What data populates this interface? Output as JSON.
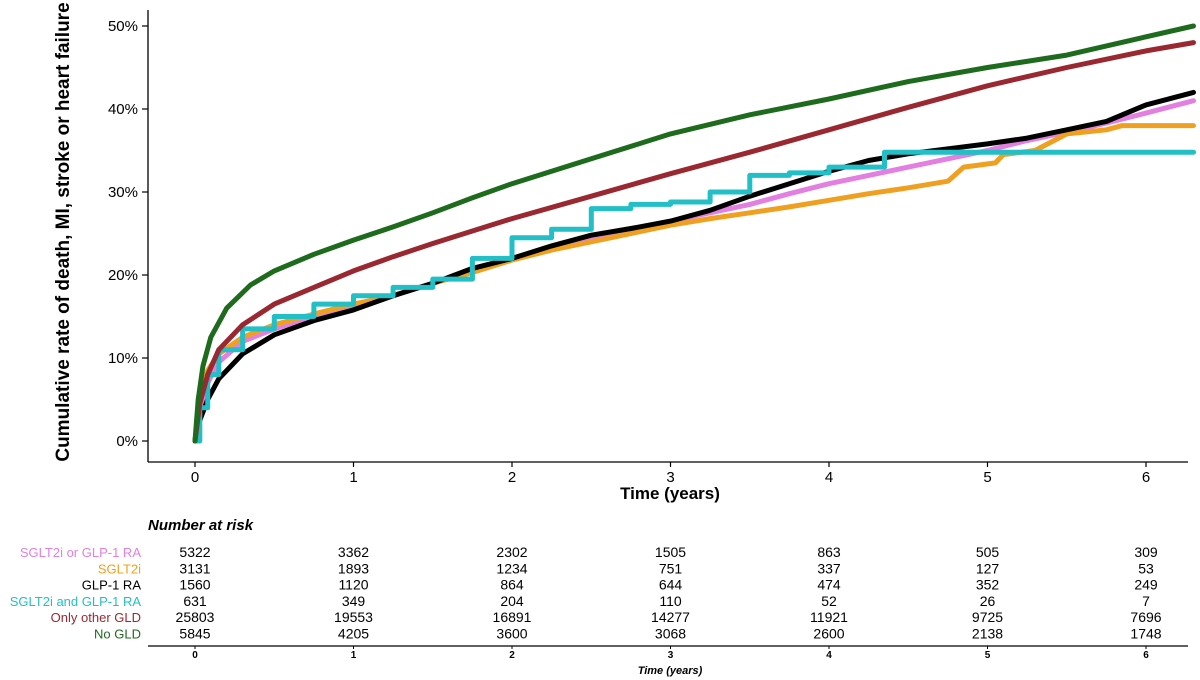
{
  "chart_data": {
    "type": "line",
    "subtype": "step-cumulative-incidence",
    "ylabel": "Cumulative rate of death, MI, stroke or heart failure",
    "xlabel": "Time (years)",
    "xlim": [
      0,
      6.3
    ],
    "ylim": [
      0,
      52
    ],
    "yticks": [
      0,
      10,
      20,
      30,
      40,
      50
    ],
    "ytick_labels": [
      "0%",
      "10%",
      "20%",
      "30%",
      "40%",
      "50%"
    ],
    "xticks": [
      0,
      1,
      2,
      3,
      4,
      5,
      6
    ],
    "xtick_labels": [
      "0",
      "1",
      "2",
      "3",
      "4",
      "5",
      "6"
    ],
    "grid": false,
    "legend": "none (labels in risk table)",
    "series": [
      {
        "name": "SGLT2i or GLP-1 RA",
        "color": "#e27fe0",
        "step": false,
        "points": [
          [
            0,
            0
          ],
          [
            0.03,
            3.5
          ],
          [
            0.08,
            7
          ],
          [
            0.15,
            9.5
          ],
          [
            0.3,
            12
          ],
          [
            0.5,
            13.5
          ],
          [
            0.75,
            15
          ],
          [
            1,
            16
          ],
          [
            1.25,
            17.5
          ],
          [
            1.5,
            19
          ],
          [
            1.75,
            20.5
          ],
          [
            2,
            22
          ],
          [
            2.25,
            23.3
          ],
          [
            2.5,
            24.5
          ],
          [
            2.75,
            25.5
          ],
          [
            3,
            26.5
          ],
          [
            3.25,
            27.5
          ],
          [
            3.5,
            28.5
          ],
          [
            3.75,
            29.8
          ],
          [
            4,
            31
          ],
          [
            4.25,
            32
          ],
          [
            4.5,
            33
          ],
          [
            4.75,
            34
          ],
          [
            5,
            35
          ],
          [
            5.25,
            36.2
          ],
          [
            5.5,
            37.2
          ],
          [
            5.75,
            38.3
          ],
          [
            6,
            39.5
          ],
          [
            6.3,
            41
          ]
        ]
      },
      {
        "name": "SGLT2i",
        "color": "#f0a020",
        "step": false,
        "points": [
          [
            0,
            0
          ],
          [
            0.03,
            5
          ],
          [
            0.08,
            8.5
          ],
          [
            0.15,
            10.5
          ],
          [
            0.3,
            12.5
          ],
          [
            0.5,
            14
          ],
          [
            0.75,
            15.3
          ],
          [
            1,
            16.5
          ],
          [
            1.25,
            17.5
          ],
          [
            1.5,
            19
          ],
          [
            1.75,
            20.3
          ],
          [
            2,
            21.8
          ],
          [
            2.25,
            23
          ],
          [
            2.5,
            24
          ],
          [
            2.75,
            25
          ],
          [
            3,
            26
          ],
          [
            3.25,
            26.8
          ],
          [
            3.5,
            27.5
          ],
          [
            3.75,
            28.2
          ],
          [
            4,
            29
          ],
          [
            4.25,
            29.8
          ],
          [
            4.5,
            30.5
          ],
          [
            4.75,
            31.3
          ],
          [
            4.85,
            33
          ],
          [
            5.05,
            33.5
          ],
          [
            5.1,
            34.5
          ],
          [
            5.3,
            35
          ],
          [
            5.5,
            37
          ],
          [
            5.75,
            37.5
          ],
          [
            5.85,
            38
          ],
          [
            6.3,
            38
          ]
        ]
      },
      {
        "name": "GLP-1 RA",
        "color": "#000000",
        "step": false,
        "points": [
          [
            0,
            0
          ],
          [
            0.03,
            2.5
          ],
          [
            0.08,
            5
          ],
          [
            0.15,
            7.5
          ],
          [
            0.3,
            10.5
          ],
          [
            0.5,
            12.8
          ],
          [
            0.75,
            14.5
          ],
          [
            1,
            15.8
          ],
          [
            1.25,
            17.5
          ],
          [
            1.5,
            19
          ],
          [
            1.75,
            20.8
          ],
          [
            2,
            22
          ],
          [
            2.25,
            23.5
          ],
          [
            2.5,
            24.8
          ],
          [
            2.75,
            25.6
          ],
          [
            3,
            26.5
          ],
          [
            3.25,
            27.8
          ],
          [
            3.5,
            29.5
          ],
          [
            3.75,
            31
          ],
          [
            4,
            32.5
          ],
          [
            4.25,
            33.8
          ],
          [
            4.5,
            34.6
          ],
          [
            4.75,
            35.2
          ],
          [
            5,
            35.8
          ],
          [
            5.25,
            36.5
          ],
          [
            5.5,
            37.5
          ],
          [
            5.75,
            38.5
          ],
          [
            6,
            40.5
          ],
          [
            6.3,
            42
          ]
        ]
      },
      {
        "name": "SGLT2i and GLP-1 RA",
        "color": "#22bfc6",
        "step": true,
        "points": [
          [
            0,
            0
          ],
          [
            0.03,
            4
          ],
          [
            0.08,
            8
          ],
          [
            0.15,
            11
          ],
          [
            0.3,
            13.5
          ],
          [
            0.5,
            15
          ],
          [
            0.75,
            16.5
          ],
          [
            1,
            17.5
          ],
          [
            1.25,
            18.5
          ],
          [
            1.5,
            19.5
          ],
          [
            1.75,
            22
          ],
          [
            2,
            24.5
          ],
          [
            2.25,
            25.5
          ],
          [
            2.5,
            28
          ],
          [
            2.75,
            28.5
          ],
          [
            3,
            28.8
          ],
          [
            3.25,
            30
          ],
          [
            3.5,
            32
          ],
          [
            3.75,
            32.3
          ],
          [
            4,
            33
          ],
          [
            4.35,
            34.8
          ],
          [
            6.3,
            34.8
          ]
        ]
      },
      {
        "name": "Only other GLD",
        "color": "#9a2830",
        "step": false,
        "points": [
          [
            0,
            0
          ],
          [
            0.03,
            4.5
          ],
          [
            0.08,
            8
          ],
          [
            0.15,
            11
          ],
          [
            0.3,
            14
          ],
          [
            0.5,
            16.5
          ],
          [
            0.75,
            18.5
          ],
          [
            1,
            20.5
          ],
          [
            1.25,
            22.2
          ],
          [
            1.5,
            23.8
          ],
          [
            1.75,
            25.3
          ],
          [
            2,
            26.8
          ],
          [
            2.5,
            29.5
          ],
          [
            3,
            32.2
          ],
          [
            3.5,
            34.8
          ],
          [
            4,
            37.5
          ],
          [
            4.5,
            40.2
          ],
          [
            5,
            42.8
          ],
          [
            5.5,
            45
          ],
          [
            6,
            47
          ],
          [
            6.3,
            48
          ]
        ]
      },
      {
        "name": "No GLD",
        "color": "#1e6b1e",
        "step": false,
        "points": [
          [
            0,
            0
          ],
          [
            0.02,
            5
          ],
          [
            0.05,
            9
          ],
          [
            0.1,
            12.5
          ],
          [
            0.2,
            16
          ],
          [
            0.35,
            18.8
          ],
          [
            0.5,
            20.5
          ],
          [
            0.75,
            22.5
          ],
          [
            1,
            24.2
          ],
          [
            1.25,
            25.8
          ],
          [
            1.5,
            27.5
          ],
          [
            1.75,
            29.3
          ],
          [
            2,
            31
          ],
          [
            2.5,
            34
          ],
          [
            3,
            37
          ],
          [
            3.5,
            39.3
          ],
          [
            4,
            41.2
          ],
          [
            4.5,
            43.3
          ],
          [
            5,
            45
          ],
          [
            5.5,
            46.5
          ],
          [
            6,
            48.7
          ],
          [
            6.3,
            50
          ]
        ]
      }
    ],
    "risk_table": {
      "title": "Number  at risk",
      "xlabel": "Time (years)",
      "times": [
        0,
        1,
        2,
        3,
        4,
        5,
        6
      ],
      "tick_labels": [
        "0",
        "1",
        "2",
        "3",
        "4",
        "5",
        "6"
      ],
      "rows": [
        {
          "name": "SGLT2i or GLP-1 RA",
          "color": "#e27fe0",
          "values": [
            "5322",
            "3362",
            "2302",
            "1505",
            "863",
            "505",
            "309"
          ]
        },
        {
          "name": "SGLT2i",
          "color": "#f0a020",
          "values": [
            "3131",
            "1893",
            "1234",
            "751",
            "337",
            "127",
            "53"
          ]
        },
        {
          "name": "GLP-1 RA",
          "color": "#000000",
          "values": [
            "1560",
            "1120",
            "864",
            "644",
            "474",
            "352",
            "249"
          ]
        },
        {
          "name": "SGLT2i and GLP-1 RA",
          "color": "#22bfc6",
          "values": [
            "631",
            "349",
            "204",
            "110",
            "52",
            "26",
            "7"
          ]
        },
        {
          "name": "Only other GLD",
          "color": "#9a2830",
          "values": [
            "25803",
            "19553",
            "16891",
            "14277",
            "11921",
            "9725",
            "7696"
          ]
        },
        {
          "name": "No GLD",
          "color": "#1e6b1e",
          "values": [
            "5845",
            "4205",
            "3600",
            "3068",
            "2600",
            "2138",
            "1748"
          ]
        }
      ]
    }
  }
}
